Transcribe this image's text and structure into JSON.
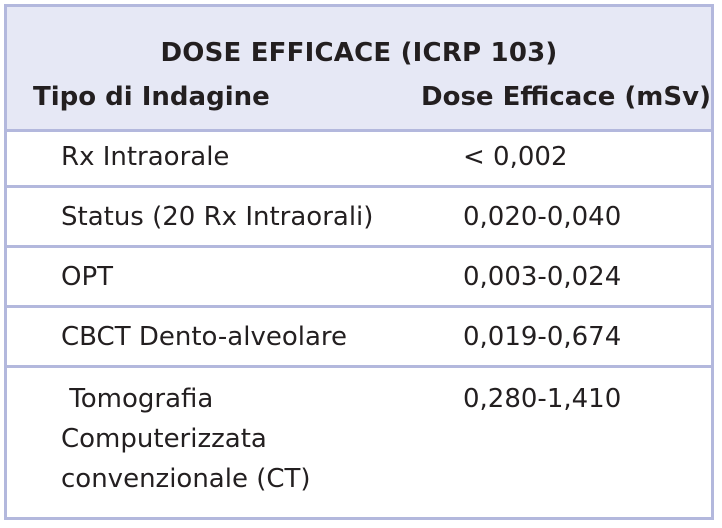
{
  "table": {
    "title": "DOSE EFFICACE (ICRP 103)",
    "headers": [
      "Tipo di Indagine",
      "Dose Efficace (mSv)"
    ],
    "rows": [
      {
        "name": [
          "Rx Intraorale"
        ],
        "value": "< 0,002"
      },
      {
        "name": [
          "Status (20 Rx Intraorali)"
        ],
        "value": "0,020-0,040"
      },
      {
        "name": [
          "OPT"
        ],
        "value": "0,003-0,024"
      },
      {
        "name": [
          "CBCT Dento-alveolare"
        ],
        "value": "0,019-0,674"
      },
      {
        "name": [
          " Tomografia",
          "Computerizzata",
          "convenzionale (CT)"
        ],
        "value": "0,280-1,410"
      }
    ],
    "colors": {
      "header_bg": "#e6e8f5",
      "border": "#b3b8dd",
      "text": "#231f20"
    }
  }
}
